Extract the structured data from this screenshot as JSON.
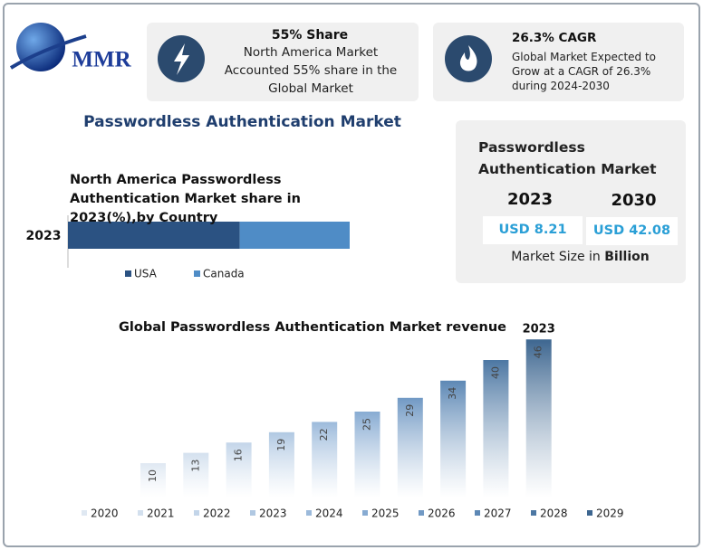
{
  "logo": {
    "text": "MMR"
  },
  "stats": [
    {
      "title": "55% Share",
      "text": "North America Market Accounted 55% share in the Global Market"
    },
    {
      "title": "26.3% CAGR",
      "text": "Global Market Expected to Grow at a CAGR of 26.3% during 2024-2030"
    }
  ],
  "title": "Passwordless Authentication Market",
  "market_box": {
    "title": "Passwordless Authentication Market",
    "years": [
      "2023",
      "2030"
    ],
    "values": [
      "USD 8.21",
      "USD 42.08"
    ],
    "footer_prefix": "Market Size in",
    "footer_bold": "Billion"
  },
  "chart_data": [
    {
      "type": "hbar_stacked",
      "title": "North America Passwordless Authentication Market share in 2023(%),by Country",
      "categories": [
        "2023"
      ],
      "series": [
        {
          "name": "USA",
          "color": "#2b5282",
          "values": [
            61
          ]
        },
        {
          "name": "Canada",
          "color": "#4f8cc6",
          "values": [
            39
          ]
        }
      ]
    },
    {
      "type": "bar",
      "title": "Global Passwordless Authentication Market revenue",
      "annotation": "2023",
      "categories": [
        "2020",
        "2021",
        "2022",
        "2023",
        "2024",
        "2025",
        "2026",
        "2027",
        "2028",
        "2029"
      ],
      "values": [
        10,
        13,
        16,
        19,
        22,
        25,
        29,
        34,
        40,
        46
      ],
      "colors": [
        "#dfe8f2",
        "#d3e0ee",
        "#c3d5e9",
        "#b0c8e2",
        "#9cbadb",
        "#87abd2",
        "#7199c4",
        "#5d88b5",
        "#4c77a3",
        "#3d6690"
      ]
    }
  ]
}
